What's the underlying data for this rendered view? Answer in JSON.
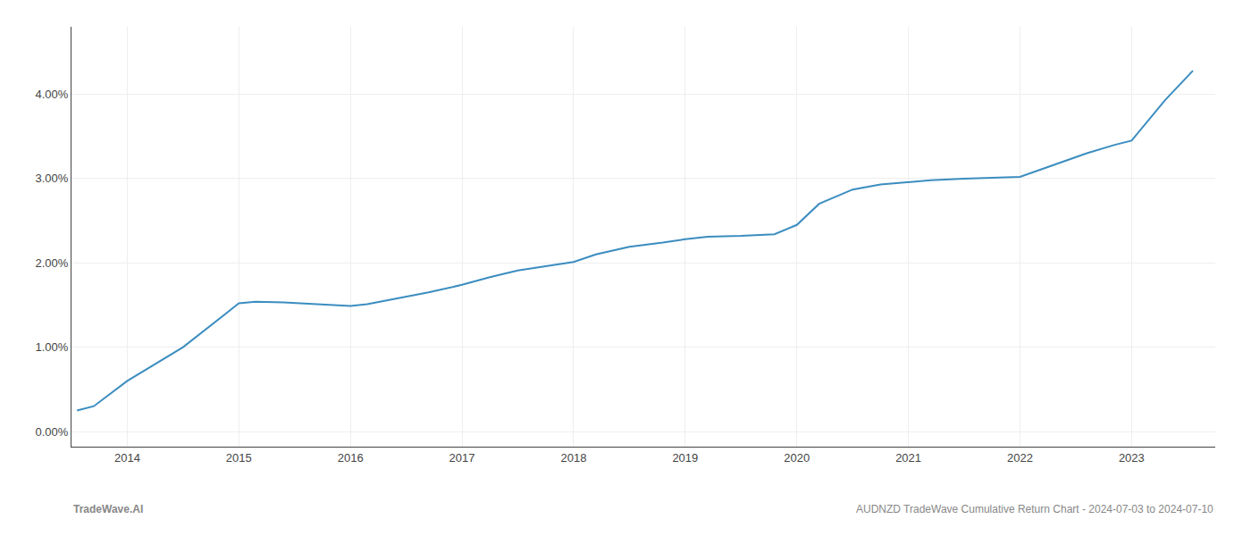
{
  "chart_data": {
    "type": "line",
    "x": [
      2013.55,
      2013.7,
      2014.0,
      2014.5,
      2015.0,
      2015.15,
      2015.4,
      2015.7,
      2016.0,
      2016.15,
      2016.4,
      2016.7,
      2017.0,
      2017.25,
      2017.5,
      2017.8,
      2018.0,
      2018.2,
      2018.5,
      2018.8,
      2019.0,
      2019.2,
      2019.5,
      2019.8,
      2020.0,
      2020.2,
      2020.5,
      2020.75,
      2021.0,
      2021.2,
      2021.5,
      2021.8,
      2022.0,
      2022.3,
      2022.6,
      2022.85,
      2023.0,
      2023.3,
      2023.55
    ],
    "values": [
      0.0025,
      0.003,
      0.006,
      0.01,
      0.0152,
      0.0154,
      0.0153,
      0.0151,
      0.0149,
      0.0151,
      0.0157,
      0.0165,
      0.0174,
      0.0183,
      0.0191,
      0.0197,
      0.0201,
      0.021,
      0.0219,
      0.0224,
      0.0228,
      0.0231,
      0.0232,
      0.0234,
      0.0245,
      0.027,
      0.0287,
      0.0293,
      0.0296,
      0.0298,
      0.03,
      0.0301,
      0.0302,
      0.0316,
      0.033,
      0.034,
      0.0345,
      0.0393,
      0.0428
    ],
    "color": "#3b8dc0",
    "xlim": [
      2013.5,
      2023.75
    ],
    "ylim": [
      -0.0018,
      0.048
    ],
    "xticks": [
      2014,
      2015,
      2016,
      2017,
      2018,
      2019,
      2020,
      2021,
      2022,
      2023
    ],
    "yticks": [
      {
        "value": 0.0,
        "label": "0.00%"
      },
      {
        "value": 0.01,
        "label": "1.00%"
      },
      {
        "value": 0.02,
        "label": "2.00%"
      },
      {
        "value": 0.03,
        "label": "3.00%"
      },
      {
        "value": 0.04,
        "label": "4.00%"
      }
    ],
    "grid": true,
    "annotations": [
      "TradeWave.AI",
      "AUDNZD TradeWave Cumulative Return Chart - 2024-07-03 to 2024-07-10"
    ]
  }
}
